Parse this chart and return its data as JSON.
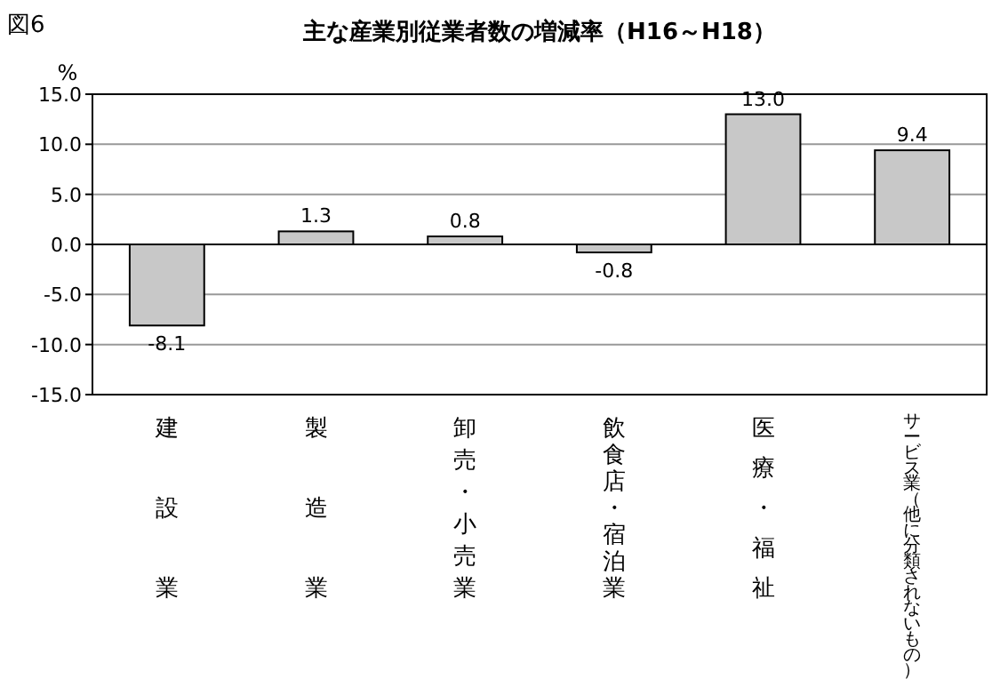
{
  "chart_data": {
    "type": "bar",
    "title": "主な産業別従業者数の増減率（H16～H18）",
    "ylabel": "%",
    "annotations": [
      "図6"
    ],
    "categories": [
      "建設業",
      "製造業",
      "卸売・小売業",
      "飲食店・宿泊業",
      "医療・福祉",
      "サービス業（他に分類されないもの）"
    ],
    "values": [
      -8.1,
      1.3,
      0.8,
      -0.8,
      13.0,
      9.4
    ],
    "value_labels": [
      "-8.1",
      "1.3",
      "0.8",
      "-0.8",
      "13.0",
      "9.4"
    ],
    "color": "#c8c8c8",
    "ylim": [
      -15,
      15
    ],
    "yticks": [
      {
        "value": 15,
        "label": "15.0"
      },
      {
        "value": 10,
        "label": "10.0"
      },
      {
        "value": 5,
        "label": "5.0"
      },
      {
        "value": 0,
        "label": "0.0"
      },
      {
        "value": -5,
        "label": "-5.0"
      },
      {
        "value": -10,
        "label": "-10.0"
      },
      {
        "value": -15,
        "label": "-15.0"
      }
    ],
    "grid": "y"
  }
}
